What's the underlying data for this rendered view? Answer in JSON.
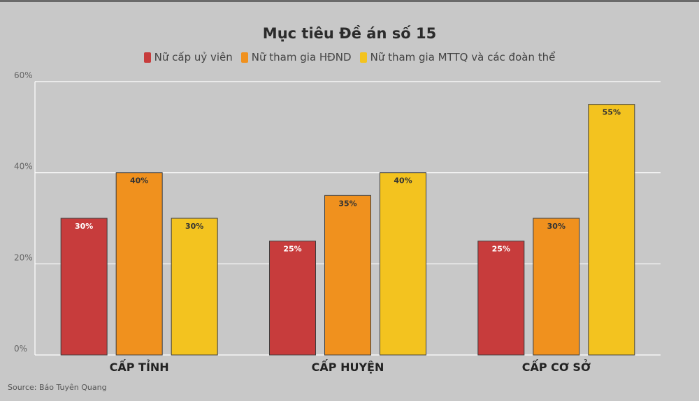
{
  "chart_data": {
    "type": "bar",
    "title": "Mục tiêu Đề án số 15",
    "categories": [
      "CẤP TỈNH",
      "CẤP HUYỆN",
      "CẤP CƠ SỞ"
    ],
    "series": [
      {
        "name": "Nữ cấp uỷ viên",
        "color": "#c73c3c",
        "values": [
          30,
          25,
          25
        ],
        "labels": [
          "30%",
          "25%",
          "25%"
        ]
      },
      {
        "name": "Nữ tham gia HĐND",
        "color": "#f0911e",
        "values": [
          40,
          35,
          30
        ],
        "labels": [
          "40%",
          "35%",
          "30%"
        ]
      },
      {
        "name": "Nữ tham gia MTTQ và các đoàn thể",
        "color": "#f3c31f",
        "values": [
          30,
          40,
          55
        ],
        "labels": [
          "30%",
          "40%",
          "55%"
        ]
      }
    ],
    "ylim": [
      0,
      60
    ],
    "yticks": [
      0,
      20,
      40,
      60
    ],
    "ytick_labels": [
      "0%",
      "20%",
      "40%",
      "60%"
    ],
    "grid": true,
    "legend_position": "top-center",
    "source": "Source: Báo Tuyên Quang"
  }
}
